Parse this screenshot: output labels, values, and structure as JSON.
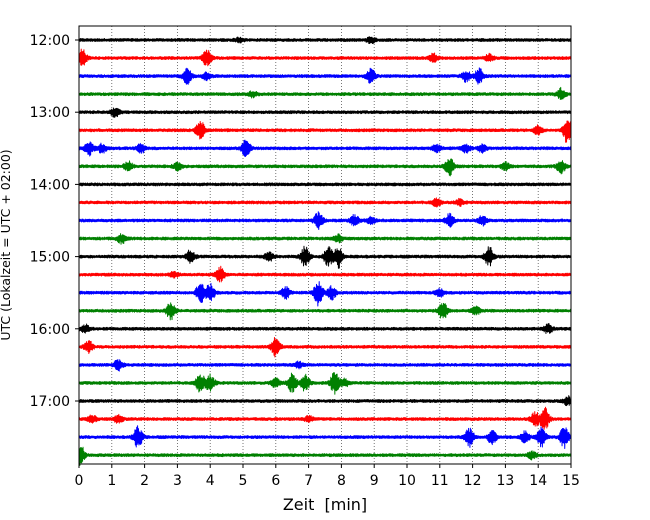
{
  "chart_data": {
    "type": "line",
    "xlabel": "Zeit  [min]",
    "ylabel": "UTC (Lokalzeit = UTC + 02:00)",
    "xlim": [
      0,
      15
    ],
    "x_ticks": [
      0,
      1,
      2,
      3,
      4,
      5,
      6,
      7,
      8,
      9,
      10,
      11,
      12,
      13,
      14,
      15
    ],
    "y_tick_labels": [
      "12:00",
      "13:00",
      "14:00",
      "15:00",
      "16:00",
      "17:00"
    ],
    "grid": "vertical dotted at every minute",
    "trace_interval_minutes": 15,
    "trace_colors": [
      "#000000",
      "#ff0000",
      "#0000ff",
      "#008000"
    ],
    "traces": [
      {
        "start": "12:00",
        "color": "#000000",
        "events": [
          [
            4.9,
            0.25
          ],
          [
            8.9,
            0.3
          ]
        ]
      },
      {
        "start": "12:15",
        "color": "#ff0000",
        "events": [
          [
            0.1,
            0.9
          ],
          [
            3.9,
            0.9
          ],
          [
            10.8,
            0.5
          ],
          [
            12.5,
            0.4
          ]
        ]
      },
      {
        "start": "12:30",
        "color": "#0000ff",
        "events": [
          [
            3.3,
            0.8
          ],
          [
            3.9,
            0.4
          ],
          [
            8.9,
            0.9
          ],
          [
            11.8,
            0.6
          ],
          [
            12.2,
            0.8
          ]
        ]
      },
      {
        "start": "12:45",
        "color": "#008000",
        "events": [
          [
            5.3,
            0.3
          ],
          [
            14.7,
            0.6
          ]
        ]
      },
      {
        "start": "13:00",
        "color": "#000000",
        "events": [
          [
            1.1,
            0.5
          ]
        ]
      },
      {
        "start": "13:15",
        "color": "#ff0000",
        "events": [
          [
            3.7,
            1.0
          ],
          [
            14.0,
            0.5
          ],
          [
            14.9,
            1.5
          ]
        ]
      },
      {
        "start": "13:30",
        "color": "#0000ff",
        "events": [
          [
            0.3,
            0.8
          ],
          [
            0.7,
            0.5
          ],
          [
            1.9,
            0.5
          ],
          [
            5.1,
            1.0
          ],
          [
            10.9,
            0.4
          ],
          [
            11.8,
            0.4
          ],
          [
            12.3,
            0.4
          ]
        ]
      },
      {
        "start": "13:45",
        "color": "#008000",
        "events": [
          [
            1.5,
            0.5
          ],
          [
            3.0,
            0.4
          ],
          [
            11.3,
            1.1
          ],
          [
            13.0,
            0.4
          ],
          [
            14.7,
            0.7
          ]
        ]
      },
      {
        "start": "14:00",
        "color": "#000000",
        "events": []
      },
      {
        "start": "14:15",
        "color": "#ff0000",
        "events": [
          [
            10.9,
            0.4
          ],
          [
            11.6,
            0.3
          ]
        ]
      },
      {
        "start": "14:30",
        "color": "#0000ff",
        "events": [
          [
            7.3,
            0.9
          ],
          [
            8.4,
            0.6
          ],
          [
            8.9,
            0.4
          ],
          [
            11.3,
            0.7
          ],
          [
            12.3,
            0.5
          ]
        ]
      },
      {
        "start": "14:45",
        "color": "#008000",
        "events": [
          [
            1.3,
            0.5
          ],
          [
            7.9,
            0.4
          ]
        ]
      },
      {
        "start": "15:00",
        "color": "#000000",
        "events": [
          [
            3.4,
            0.7
          ],
          [
            5.8,
            0.5
          ],
          [
            6.9,
            1.1
          ],
          [
            7.6,
            1.0
          ],
          [
            7.9,
            1.2
          ],
          [
            12.5,
            1.1
          ]
        ]
      },
      {
        "start": "15:15",
        "color": "#ff0000",
        "events": [
          [
            4.3,
            0.8
          ],
          [
            2.9,
            0.3
          ]
        ]
      },
      {
        "start": "15:30",
        "color": "#0000ff",
        "events": [
          [
            3.7,
            1.1
          ],
          [
            4.0,
            0.9
          ],
          [
            6.3,
            0.6
          ],
          [
            7.3,
            1.4
          ],
          [
            7.7,
            0.7
          ],
          [
            11.0,
            0.4
          ]
        ]
      },
      {
        "start": "15:45",
        "color": "#008000",
        "events": [
          [
            2.8,
            0.9
          ],
          [
            11.1,
            1.0
          ],
          [
            12.1,
            0.4
          ]
        ]
      },
      {
        "start": "16:00",
        "color": "#000000",
        "events": [
          [
            0.2,
            0.4
          ],
          [
            14.3,
            0.5
          ]
        ]
      },
      {
        "start": "16:15",
        "color": "#ff0000",
        "events": [
          [
            0.3,
            0.6
          ],
          [
            6.0,
            1.1
          ]
        ]
      },
      {
        "start": "16:30",
        "color": "#0000ff",
        "events": [
          [
            1.2,
            0.6
          ],
          [
            6.7,
            0.3
          ]
        ]
      },
      {
        "start": "16:45",
        "color": "#008000",
        "events": [
          [
            3.7,
            1.0
          ],
          [
            4.0,
            0.9
          ],
          [
            6.0,
            0.5
          ],
          [
            6.5,
            1.0
          ],
          [
            6.9,
            0.9
          ],
          [
            7.8,
            1.2
          ],
          [
            8.1,
            0.4
          ]
        ]
      },
      {
        "start": "17:00",
        "color": "#000000",
        "events": [
          [
            14.9,
            0.5
          ]
        ]
      },
      {
        "start": "17:15",
        "color": "#ff0000",
        "events": [
          [
            0.4,
            0.4
          ],
          [
            1.2,
            0.4
          ],
          [
            7.0,
            0.3
          ],
          [
            13.9,
            0.8
          ],
          [
            14.2,
            1.2
          ]
        ]
      },
      {
        "start": "17:30",
        "color": "#0000ff",
        "events": [
          [
            1.8,
            1.2
          ],
          [
            11.9,
            1.0
          ],
          [
            12.6,
            0.8
          ],
          [
            13.6,
            0.6
          ],
          [
            14.1,
            1.0
          ],
          [
            14.8,
            1.2
          ]
        ]
      },
      {
        "start": "17:45",
        "color": "#008000",
        "events": [
          [
            0.05,
            1.0
          ],
          [
            13.8,
            0.4
          ]
        ]
      }
    ]
  }
}
